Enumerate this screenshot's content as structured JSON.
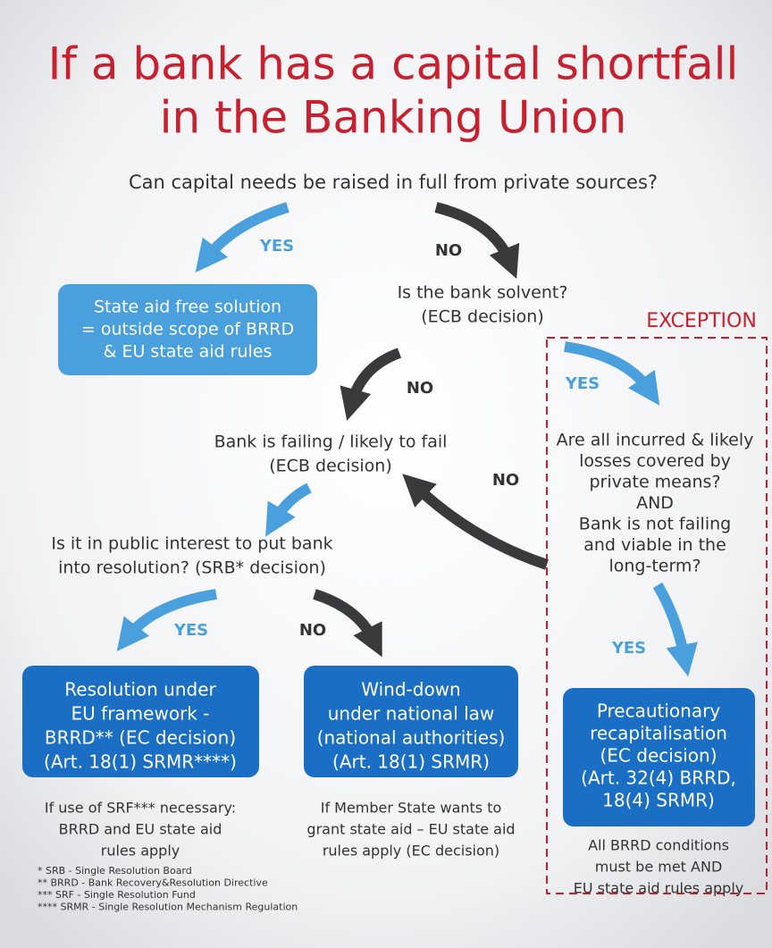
{
  "title": [
    "If a bank has a capital shortfall",
    "in the Banking Union"
  ],
  "question": "Can capital needs be raised in full from private sources?",
  "state_aid_free": [
    "State aid free solution",
    "= outside scope of BRRD",
    "& EU state aid rules"
  ],
  "solvent": [
    "Is the bank solvent?",
    "(ECB decision)"
  ],
  "exception": "EXCEPTION",
  "failing": [
    "Bank is failing / likely to fail",
    "(ECB decision)"
  ],
  "losses": [
    "Are all incurred & likely",
    "losses covered by",
    "private means?",
    "AND",
    "Bank is not failing",
    "and viable in the",
    "long-term?"
  ],
  "public_interest": [
    "Is it in public interest to put bank",
    "into resolution? (SRB* decision)"
  ],
  "resolution": [
    "Resolution under",
    "EU framework -",
    "BRRD** (EC decision)",
    "(Art. 18(1) SRMR****)"
  ],
  "wind_down": [
    "Wind-down",
    "under national law",
    "(national authorities)",
    "(Art. 18(1) SRMR)"
  ],
  "precautionary": [
    "Precautionary",
    "recapitalisation",
    "(EC decision)",
    "(Art. 32(4) BRRD,",
    "18(4) SRMR)"
  ],
  "resolution_note": [
    "If use of SRF*** necessary:",
    "BRRD and EU state aid",
    "rules apply"
  ],
  "wind_down_note": [
    "If Member State wants to",
    "grant state aid – EU state aid",
    "rules apply (EC decision)"
  ],
  "precautionary_note": [
    "All BRRD conditions",
    "must be met AND",
    "EU state aid rules apply"
  ],
  "labels": [
    "YES",
    "NO",
    "NO",
    "YES",
    "NO",
    "YES",
    "NO",
    "YES"
  ],
  "footnotes": [
    "* SRB - Single Resolution Board",
    "** BRRD - Bank Recovery&Resolution Directive",
    "*** SRF - Single Resolution Fund",
    "**** SRMR - Single Resolution Mechanism Regulation"
  ]
}
